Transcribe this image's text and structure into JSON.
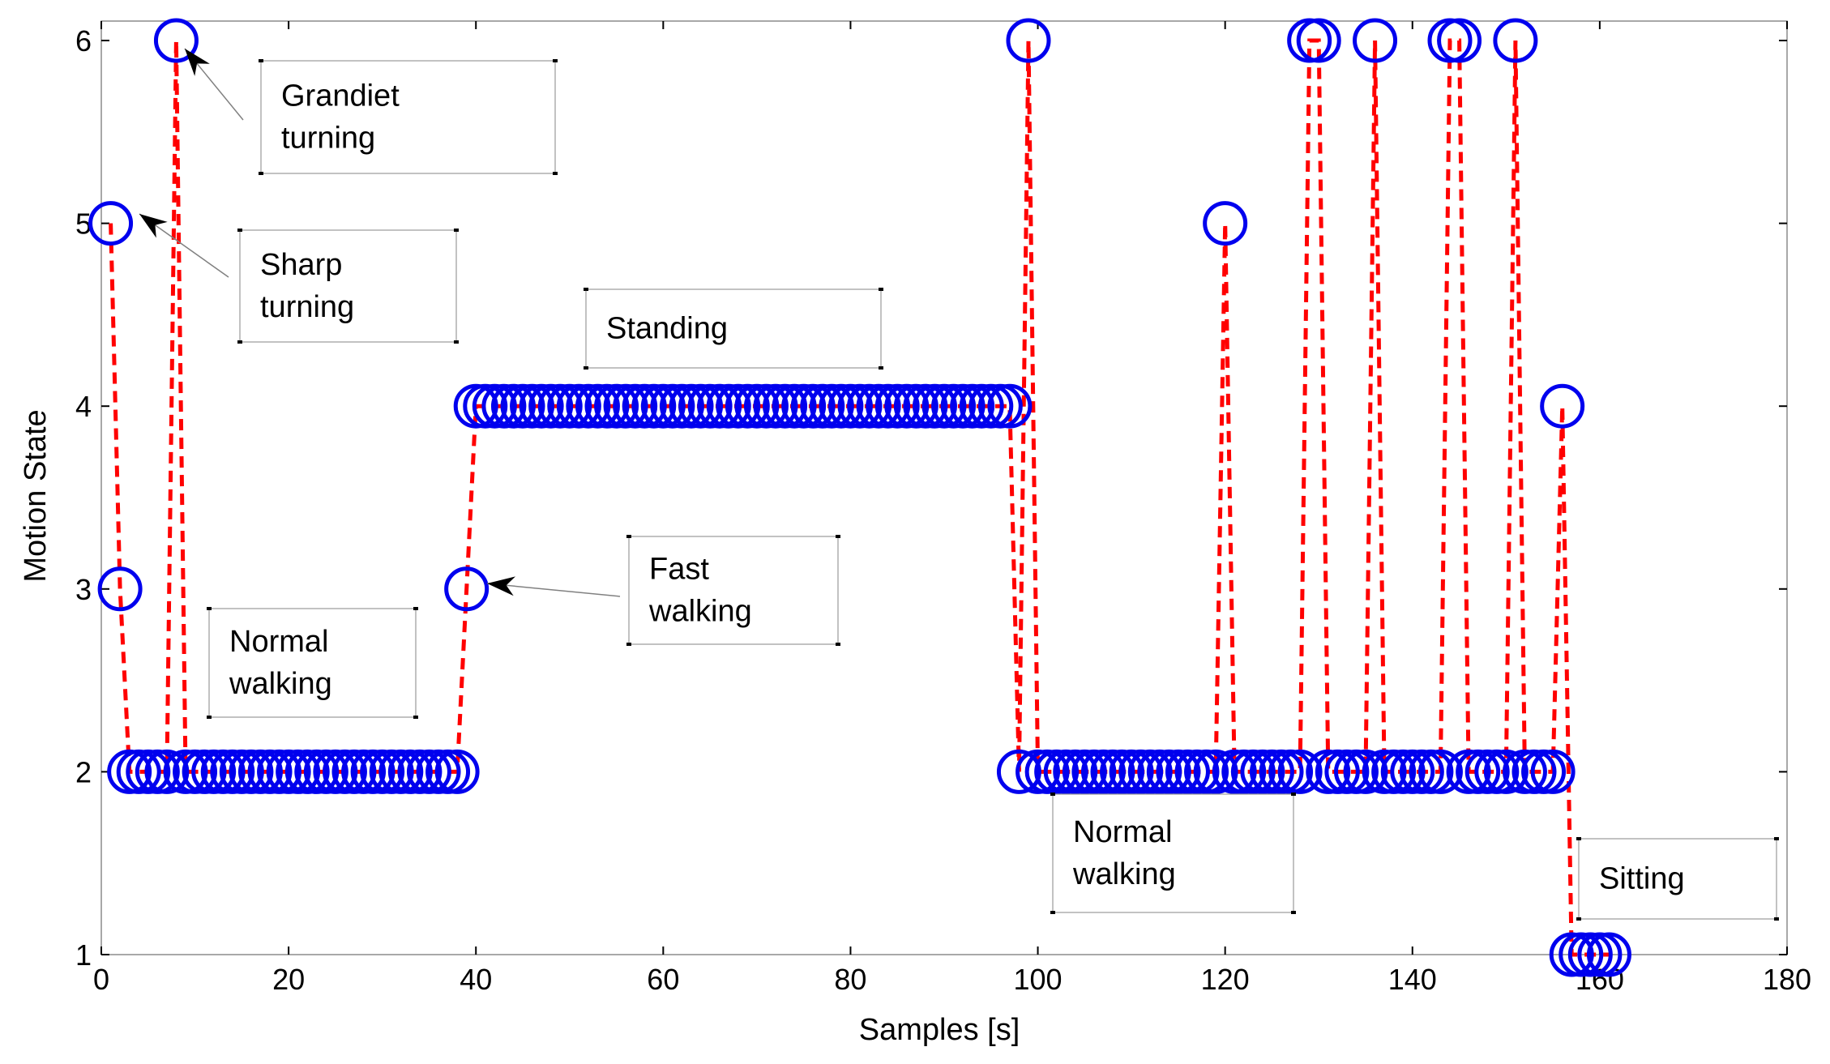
{
  "chart_data": {
    "type": "line",
    "title": "",
    "xlabel": "Samples [s]",
    "ylabel": "Motion State",
    "xlim": [
      0,
      180
    ],
    "ylim": [
      1,
      6.1
    ],
    "xticks": [
      0,
      20,
      40,
      60,
      80,
      100,
      120,
      140,
      160,
      180
    ],
    "yticks": [
      1,
      2,
      3,
      4,
      5,
      6
    ],
    "series": [
      {
        "name": "Motion State",
        "line_color": "#ff0000",
        "line_style": "dashed",
        "marker": "circle",
        "marker_color": "#0000ee",
        "x": [
          1,
          2,
          3,
          4,
          5,
          6,
          7,
          8,
          9,
          10,
          11,
          12,
          13,
          14,
          15,
          16,
          17,
          18,
          19,
          20,
          21,
          22,
          23,
          24,
          25,
          26,
          27,
          28,
          29,
          30,
          31,
          32,
          33,
          34,
          35,
          36,
          37,
          38,
          39,
          40,
          41,
          42,
          43,
          44,
          45,
          46,
          47,
          48,
          49,
          50,
          51,
          52,
          53,
          54,
          55,
          56,
          57,
          58,
          59,
          60,
          61,
          62,
          63,
          64,
          65,
          66,
          67,
          68,
          69,
          70,
          71,
          72,
          73,
          74,
          75,
          76,
          77,
          78,
          79,
          80,
          81,
          82,
          83,
          84,
          85,
          86,
          87,
          88,
          89,
          90,
          91,
          92,
          93,
          94,
          95,
          96,
          97,
          98,
          99,
          100,
          101,
          102,
          103,
          104,
          105,
          106,
          107,
          108,
          109,
          110,
          111,
          112,
          113,
          114,
          115,
          116,
          117,
          118,
          119,
          120,
          121,
          122,
          123,
          124,
          125,
          126,
          127,
          128,
          129,
          130,
          131,
          132,
          133,
          134,
          135,
          136,
          137,
          138,
          139,
          140,
          141,
          142,
          143,
          144,
          145,
          146,
          147,
          148,
          149,
          150,
          151,
          152,
          153,
          154,
          155,
          156,
          157,
          158,
          159,
          160,
          161
        ],
        "y": [
          5,
          3,
          2,
          2,
          2,
          2,
          2,
          6,
          2,
          2,
          2,
          2,
          2,
          2,
          2,
          2,
          2,
          2,
          2,
          2,
          2,
          2,
          2,
          2,
          2,
          2,
          2,
          2,
          2,
          2,
          2,
          2,
          2,
          2,
          2,
          2,
          2,
          2,
          3,
          4,
          4,
          4,
          4,
          4,
          4,
          4,
          4,
          4,
          4,
          4,
          4,
          4,
          4,
          4,
          4,
          4,
          4,
          4,
          4,
          4,
          4,
          4,
          4,
          4,
          4,
          4,
          4,
          4,
          4,
          4,
          4,
          4,
          4,
          4,
          4,
          4,
          4,
          4,
          4,
          4,
          4,
          4,
          4,
          4,
          4,
          4,
          4,
          4,
          4,
          4,
          4,
          4,
          4,
          4,
          4,
          4,
          4,
          2,
          6,
          2,
          2,
          2,
          2,
          2,
          2,
          2,
          2,
          2,
          2,
          2,
          2,
          2,
          2,
          2,
          2,
          2,
          2,
          2,
          2,
          5,
          2,
          2,
          2,
          2,
          2,
          2,
          2,
          2,
          6,
          6,
          2,
          2,
          2,
          2,
          2,
          6,
          2,
          2,
          2,
          2,
          2,
          2,
          2,
          6,
          6,
          2,
          2,
          2,
          2,
          2,
          6,
          2,
          2,
          2,
          2,
          4,
          1,
          1,
          1,
          1,
          1
        ]
      }
    ],
    "annotations": [
      {
        "text": [
          "Grandiet",
          "turning"
        ],
        "points_to": [
          8,
          6
        ]
      },
      {
        "text": [
          "Sharp",
          "turning"
        ],
        "points_to": [
          1,
          5
        ]
      },
      {
        "text": [
          "Standing"
        ]
      },
      {
        "text": [
          "Fast",
          "walking"
        ],
        "points_to": [
          39,
          3
        ]
      },
      {
        "text": [
          "Normal",
          "walking"
        ]
      },
      {
        "text": [
          "Normal",
          "walking"
        ]
      },
      {
        "text": [
          "Sitting"
        ]
      }
    ]
  }
}
